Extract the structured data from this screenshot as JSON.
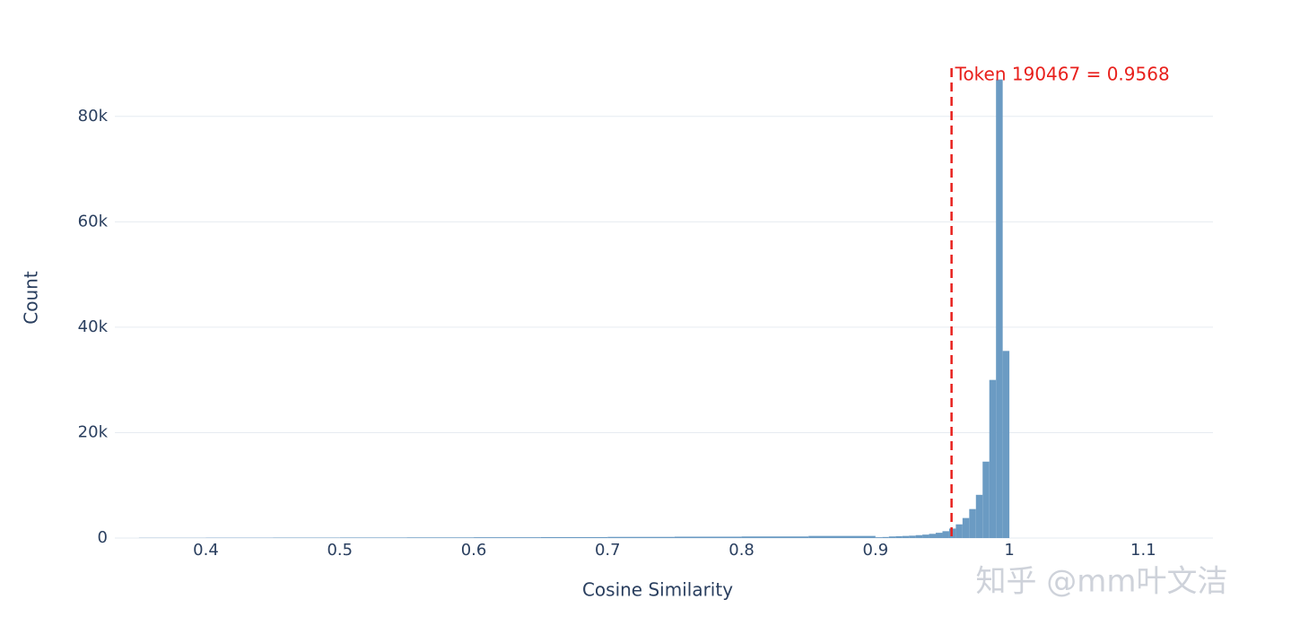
{
  "chart_data": {
    "type": "histogram",
    "x_label": "Cosine Similarity",
    "y_label": "Count",
    "bins": [
      0.35,
      0.4,
      0.45,
      0.5,
      0.55,
      0.6,
      0.65,
      0.7,
      0.75,
      0.8,
      0.85,
      0.9,
      0.905,
      0.91,
      0.915,
      0.92,
      0.925,
      0.93,
      0.935,
      0.94,
      0.945,
      0.95,
      0.955,
      0.96,
      0.965,
      0.97,
      0.975,
      0.98,
      0.985,
      0.99,
      0.995,
      1.0
    ],
    "values": [
      40,
      60,
      80,
      100,
      120,
      150,
      180,
      220,
      260,
      300,
      400,
      150,
      200,
      300,
      350,
      400,
      450,
      550,
      650,
      800,
      1000,
      1300,
      1800,
      2600,
      3800,
      5500,
      8200,
      14500,
      30000,
      87000,
      35500
    ],
    "color": "#6b9bc3",
    "xlim": [
      0.332,
      1.152
    ],
    "xticks": [
      0.4,
      0.5,
      0.6,
      0.7,
      0.8,
      0.9,
      1,
      1.1
    ],
    "ylim": [
      0,
      90000
    ],
    "yticks": [
      {
        "value": 0,
        "label": "0"
      },
      {
        "value": 20000,
        "label": "20k"
      },
      {
        "value": 40000,
        "label": "40k"
      },
      {
        "value": 60000,
        "label": "60k"
      },
      {
        "value": 80000,
        "label": "80k"
      }
    ],
    "grid": true,
    "annotation": {
      "text": "Token 190467 = 0.9568",
      "x": 0.9568,
      "color": "#e8201c"
    },
    "watermark": "知乎 @mm叶文洁"
  }
}
